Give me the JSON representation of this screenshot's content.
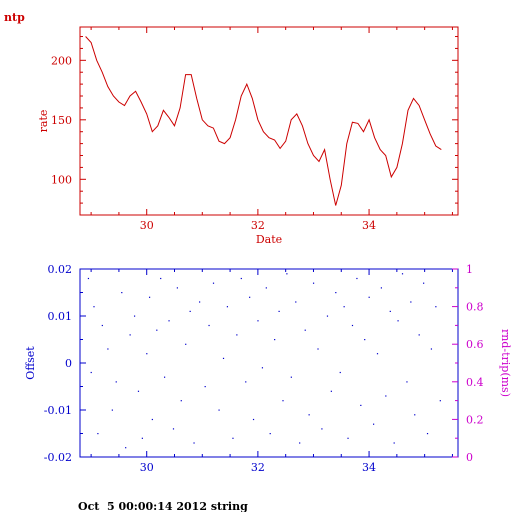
{
  "header": {
    "label": "ntp"
  },
  "footer": {
    "timestamp": "Oct  5 00:00:14 2012 string"
  },
  "colors": {
    "top": "#cc0000",
    "bottom_left": "#0000cc",
    "bottom_right": "#cc00cc"
  },
  "chart_data": [
    {
      "type": "line",
      "title": "",
      "xlabel": "Date",
      "ylabel": "rate",
      "xlim": [
        28.8,
        35.6
      ],
      "ylim": [
        70,
        228
      ],
      "xticks": [
        30,
        32,
        34
      ],
      "xtick_labels": [
        "30",
        "32",
        "34"
      ],
      "yticks": [
        100,
        150,
        200
      ],
      "ytick_labels": [
        "100",
        "150",
        "200"
      ],
      "series": [
        {
          "x": [
            28.9,
            29.0,
            29.1,
            29.2,
            29.3,
            29.4,
            29.5,
            29.6,
            29.7,
            29.8,
            29.9,
            30.0,
            30.1,
            30.2,
            30.3,
            30.4,
            30.5,
            30.6,
            30.7,
            30.8,
            30.9,
            31.0,
            31.1,
            31.2,
            31.3,
            31.4,
            31.5,
            31.6,
            31.7,
            31.8,
            31.9,
            32.0,
            32.1,
            32.2,
            32.3,
            32.4,
            32.5,
            32.6,
            32.7,
            32.8,
            32.9,
            33.0,
            33.1,
            33.2,
            33.3,
            33.4,
            33.5,
            33.6,
            33.7,
            33.8,
            33.9,
            34.0,
            34.1,
            34.2,
            34.3,
            34.4,
            34.5,
            34.6,
            34.7,
            34.8,
            34.9,
            35.0,
            35.1,
            35.2,
            35.3
          ],
          "y": [
            220,
            215,
            200,
            190,
            178,
            170,
            165,
            162,
            170,
            174,
            165,
            155,
            140,
            145,
            158,
            152,
            145,
            160,
            188,
            188,
            168,
            150,
            145,
            143,
            132,
            130,
            135,
            150,
            170,
            180,
            168,
            150,
            140,
            135,
            133,
            126,
            132,
            150,
            155,
            145,
            130,
            120,
            115,
            125,
            100,
            78,
            95,
            130,
            148,
            147,
            140,
            150,
            135,
            125,
            120,
            102,
            110,
            130,
            158,
            168,
            162,
            150,
            138,
            128,
            125
          ]
        }
      ]
    },
    {
      "type": "scatter",
      "title": "",
      "xlabel": "",
      "ylabel": "Offset",
      "y2label": "rnd-trip(ms)",
      "xlim": [
        28.8,
        35.6
      ],
      "ylim": [
        -0.02,
        0.02
      ],
      "y2lim": [
        0,
        1
      ],
      "xticks": [
        30,
        32,
        34
      ],
      "xtick_labels": [
        "30",
        "32",
        "34"
      ],
      "yticks": [
        -0.02,
        -0.01,
        0,
        0.01,
        0.02
      ],
      "ytick_labels": [
        "-0.02",
        "-0.01",
        "0",
        "0.01",
        "0.02"
      ],
      "y2ticks": [
        0,
        0.2,
        0.4,
        0.6,
        0.8,
        1
      ],
      "y2tick_labels": [
        "0",
        "0.2",
        "0.4",
        "0.6",
        "0.8",
        "1"
      ],
      "series": [
        {
          "x": [
            28.95,
            29.0,
            29.05,
            29.12,
            29.2,
            29.3,
            29.38,
            29.45,
            29.55,
            29.62,
            29.7,
            29.78,
            29.85,
            29.92,
            30.0,
            30.05,
            30.1,
            30.18,
            30.25,
            30.32,
            30.4,
            30.48,
            30.55,
            30.62,
            30.7,
            30.78,
            30.85,
            30.95,
            31.05,
            31.12,
            31.2,
            31.3,
            31.38,
            31.45,
            31.55,
            31.62,
            31.7,
            31.78,
            31.85,
            31.92,
            32.0,
            32.08,
            32.15,
            32.22,
            32.3,
            32.38,
            32.45,
            32.52,
            32.6,
            32.68,
            32.75,
            32.85,
            32.92,
            33.0,
            33.08,
            33.15,
            33.25,
            33.32,
            33.4,
            33.48,
            33.55,
            33.62,
            33.7,
            33.78,
            33.85,
            33.92,
            34.0,
            34.08,
            34.15,
            34.22,
            34.3,
            34.38,
            34.45,
            34.52,
            34.6,
            34.68,
            34.75,
            34.82,
            34.9,
            34.98,
            35.05,
            35.12,
            35.2,
            35.28
          ],
          "y": [
            0.018,
            -0.002,
            0.012,
            -0.015,
            0.008,
            0.003,
            -0.01,
            -0.004,
            0.015,
            -0.018,
            0.006,
            0.01,
            -0.006,
            -0.016,
            0.002,
            0.014,
            -0.012,
            0.007,
            0.018,
            -0.003,
            0.009,
            -0.014,
            0.016,
            -0.008,
            0.004,
            0.011,
            -0.017,
            0.013,
            -0.005,
            0.008,
            0.017,
            -0.01,
            0.001,
            0.012,
            -0.016,
            0.006,
            0.018,
            -0.004,
            0.014,
            -0.012,
            0.009,
            -0.001,
            0.016,
            -0.015,
            0.005,
            0.011,
            -0.008,
            0.019,
            -0.003,
            0.013,
            -0.017,
            0.007,
            -0.011,
            0.017,
            0.003,
            -0.014,
            0.01,
            -0.006,
            0.015,
            -0.002,
            0.012,
            -0.016,
            0.008,
            0.018,
            -0.009,
            0.005,
            0.014,
            -0.013,
            0.002,
            0.016,
            -0.007,
            0.011,
            -0.017,
            0.009,
            0.019,
            -0.004,
            0.013,
            -0.011,
            0.006,
            0.017,
            -0.015,
            0.003,
            0.012,
            -0.008
          ]
        }
      ]
    }
  ]
}
